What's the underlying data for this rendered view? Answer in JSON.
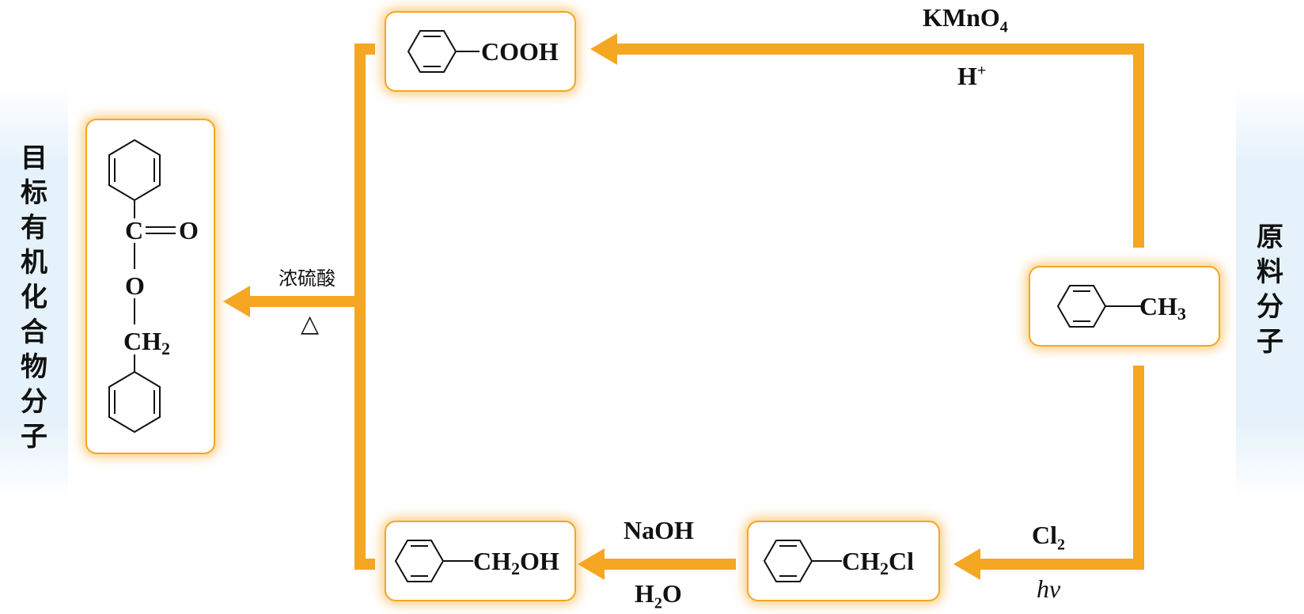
{
  "side_labels": {
    "target": [
      "目",
      "标",
      "有",
      "机",
      "化",
      "合",
      "物",
      "分",
      "子"
    ],
    "raw": [
      "原",
      "料",
      "分",
      "子"
    ]
  },
  "molecules": {
    "toluene": {
      "group": "CH",
      "sub": "3"
    },
    "benzoic_acid": {
      "group": "COOH"
    },
    "benzyl_chloride": {
      "group_a": "CH",
      "sub": "2",
      "group_b": "Cl"
    },
    "benzyl_alcohol": {
      "group_a": "CH",
      "sub": "2",
      "group_b": "OH"
    },
    "ester": {
      "carbon": "C",
      "oxygen_dbl": "O",
      "oxygen": "O",
      "ch": "CH",
      "sub": "2"
    }
  },
  "reagents": {
    "oxidation": {
      "main": "KMnO",
      "main_sub": "4",
      "cond": "H",
      "cond_sup": "+"
    },
    "chlorination": {
      "main": "Cl",
      "main_sub": "2",
      "cond": "hν"
    },
    "hydrolysis": {
      "main": "NaOH",
      "cond_a": "H",
      "cond_sub": "2",
      "cond_b": "O"
    },
    "esterification": {
      "main": "浓硫酸",
      "cond": "△"
    }
  },
  "colors": {
    "arrow": "#f5a623",
    "panel": "#e6f2fb",
    "text": "#111111"
  }
}
